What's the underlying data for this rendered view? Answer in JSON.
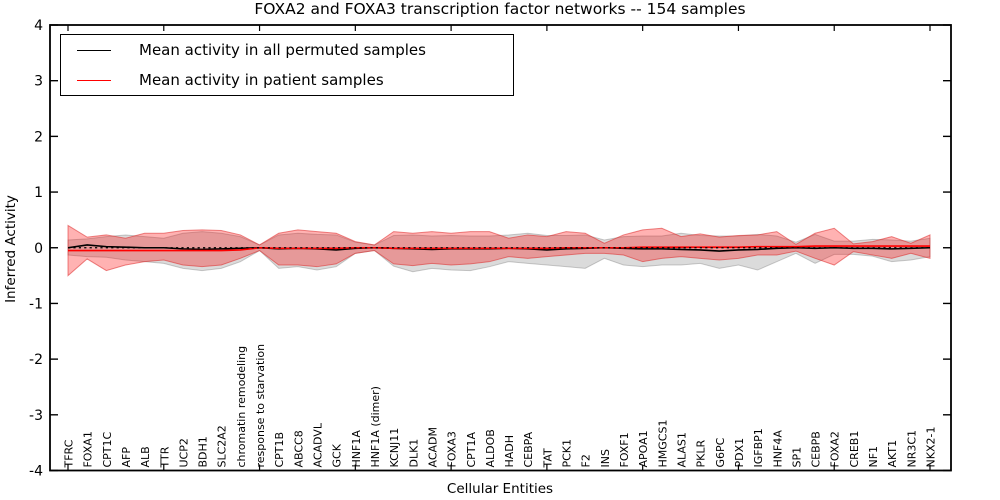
{
  "figure": {
    "title": "FOXA2 and FOXA3 transcription factor networks -- 154 samples",
    "xlabel": "Cellular Entities",
    "ylabel": "Inferred Activity"
  },
  "legend": {
    "position": "upper left",
    "items": [
      {
        "label": "Mean activity in all permuted samples",
        "color": "#000000"
      },
      {
        "label": "Mean activity in patient samples",
        "color": "#ff0000"
      }
    ]
  },
  "chart_data": {
    "type": "line",
    "title": "FOXA2 and FOXA3 transcription factor networks -- 154 samples",
    "xlabel": "Cellular Entities",
    "ylabel": "Inferred Activity",
    "ylim": [
      -4,
      4
    ],
    "yticks": [
      -4,
      -3,
      -2,
      -1,
      0,
      1,
      2,
      3,
      4
    ],
    "grid": false,
    "zero_reference_line": true,
    "legend_position": "upper left",
    "categories": [
      "TFRC",
      "FOXA1",
      "CPT1C",
      "AFP",
      "ALB",
      "TTR",
      "UCP2",
      "BDH1",
      "SLC2A2",
      "chromatin remodeling",
      "response to starvation",
      "CPT1B",
      "ABCC8",
      "ACADVL",
      "GCK",
      "HNF1A",
      "HNF1A (dimer)",
      "KCNJ11",
      "DLK1",
      "ACADM",
      "FOXA3",
      "CPT1A",
      "ALDOB",
      "HADH",
      "CEBPA",
      "TAT",
      "PCK1",
      "F2",
      "INS",
      "FOXF1",
      "APOA1",
      "HMGCS1",
      "ALAS1",
      "PKLR",
      "G6PC",
      "PDX1",
      "IGFBP1",
      "HNF4A",
      "SP1",
      "CEBPB",
      "FOXA2",
      "CREB1",
      "NF1",
      "AKT1",
      "NR3C1",
      "NKX2-1"
    ],
    "series": [
      {
        "name": "Mean activity in all permuted samples",
        "color": "#000000",
        "style": "solid",
        "values": [
          0.0,
          0.05,
          0.02,
          0.01,
          0.0,
          0.0,
          -0.02,
          -0.03,
          -0.02,
          -0.01,
          0.0,
          -0.02,
          -0.01,
          -0.02,
          -0.04,
          -0.01,
          0.0,
          -0.01,
          -0.02,
          -0.03,
          -0.02,
          -0.02,
          -0.02,
          -0.01,
          -0.02,
          -0.04,
          -0.02,
          -0.01,
          0.0,
          -0.01,
          -0.02,
          -0.02,
          -0.03,
          -0.04,
          -0.06,
          -0.04,
          -0.03,
          -0.01,
          0.0,
          -0.01,
          0.0,
          -0.01,
          -0.01,
          -0.02,
          -0.01,
          0.0
        ]
      },
      {
        "name": "Mean activity in patient samples",
        "color": "#ff0000",
        "style": "solid",
        "values": [
          -0.05,
          -0.05,
          -0.05,
          -0.05,
          -0.05,
          -0.05,
          -0.05,
          -0.05,
          -0.05,
          -0.04,
          0.0,
          -0.01,
          -0.01,
          -0.01,
          -0.01,
          0.0,
          0.0,
          -0.01,
          -0.01,
          -0.01,
          -0.01,
          -0.01,
          -0.01,
          -0.01,
          -0.01,
          -0.01,
          0.0,
          0.0,
          0.0,
          0.0,
          0.01,
          0.01,
          0.01,
          0.01,
          0.01,
          0.01,
          0.02,
          0.02,
          0.02,
          0.03,
          0.03,
          0.03,
          0.03,
          0.03,
          0.03,
          0.03
        ]
      }
    ],
    "bands": [
      {
        "name": "permuted-samples-std-band",
        "fill": "rgba(110,110,110,0.25)",
        "edge": "rgba(110,110,110,0.35)",
        "upper": [
          0.14,
          0.16,
          0.2,
          0.23,
          0.2,
          0.17,
          0.26,
          0.29,
          0.26,
          0.2,
          0.05,
          0.23,
          0.26,
          0.24,
          0.23,
          0.1,
          0.05,
          0.22,
          0.23,
          0.21,
          0.22,
          0.21,
          0.21,
          0.23,
          0.26,
          0.22,
          0.22,
          0.23,
          0.14,
          0.2,
          0.21,
          0.21,
          0.26,
          0.22,
          0.21,
          0.21,
          0.24,
          0.21,
          0.1,
          0.24,
          0.12,
          0.12,
          0.15,
          0.14,
          0.12,
          0.17
        ],
        "lower": [
          -0.13,
          -0.16,
          -0.17,
          -0.22,
          -0.25,
          -0.28,
          -0.37,
          -0.41,
          -0.37,
          -0.25,
          -0.05,
          -0.37,
          -0.34,
          -0.4,
          -0.34,
          -0.1,
          -0.05,
          -0.33,
          -0.43,
          -0.37,
          -0.4,
          -0.41,
          -0.34,
          -0.25,
          -0.28,
          -0.31,
          -0.34,
          -0.37,
          -0.19,
          -0.31,
          -0.34,
          -0.31,
          -0.31,
          -0.28,
          -0.37,
          -0.31,
          -0.4,
          -0.25,
          -0.1,
          -0.28,
          -0.12,
          -0.12,
          -0.15,
          -0.25,
          -0.22,
          -0.16
        ]
      },
      {
        "name": "patient-samples-std-band",
        "fill": "rgba(255,0,0,0.30)",
        "edge": "rgba(220,40,40,0.55)",
        "upper": [
          0.4,
          0.19,
          0.23,
          0.17,
          0.26,
          0.26,
          0.31,
          0.32,
          0.31,
          0.23,
          0.05,
          0.26,
          0.32,
          0.29,
          0.26,
          0.11,
          0.05,
          0.29,
          0.26,
          0.29,
          0.26,
          0.29,
          0.29,
          0.17,
          0.23,
          0.2,
          0.29,
          0.26,
          0.08,
          0.23,
          0.32,
          0.35,
          0.2,
          0.25,
          0.19,
          0.22,
          0.23,
          0.29,
          0.06,
          0.26,
          0.35,
          0.07,
          0.11,
          0.2,
          0.08,
          0.23
        ],
        "lower": [
          -0.5,
          -0.2,
          -0.41,
          -0.31,
          -0.25,
          -0.22,
          -0.31,
          -0.34,
          -0.31,
          -0.19,
          -0.05,
          -0.31,
          -0.31,
          -0.34,
          -0.29,
          -0.1,
          -0.05,
          -0.29,
          -0.32,
          -0.28,
          -0.31,
          -0.29,
          -0.25,
          -0.16,
          -0.19,
          -0.16,
          -0.13,
          -0.1,
          -0.1,
          -0.13,
          -0.25,
          -0.19,
          -0.16,
          -0.19,
          -0.22,
          -0.19,
          -0.13,
          -0.13,
          -0.06,
          -0.19,
          -0.31,
          -0.07,
          -0.13,
          -0.19,
          -0.1,
          -0.19
        ]
      }
    ]
  }
}
